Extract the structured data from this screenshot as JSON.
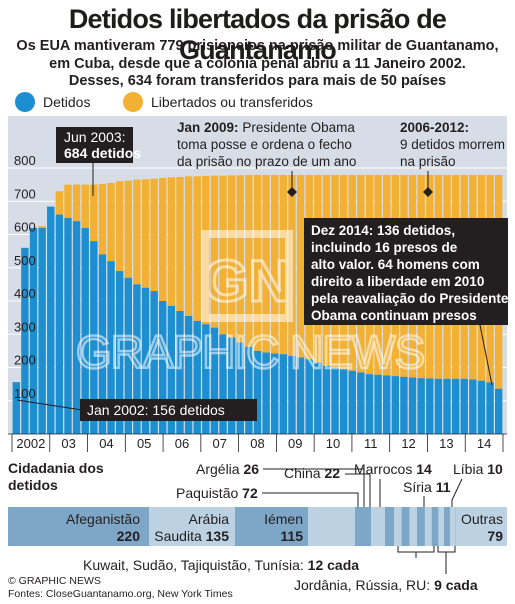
{
  "title": "Detidos libertados da prisão de Guantanamo",
  "subtitle": [
    "Os EUA mantiveram 779 prisioneios na prisão militar de Guantanamo,",
    "em Cuba, desde que a colónia penal abriu a 11 Janeiro 2002.",
    "Desses, 634 foram transferidos para mais de 50 países"
  ],
  "colors": {
    "detained": "#1d8fd1",
    "released": "#f2b134",
    "plot_bg": "#d6dde6",
    "dark": "#231f20",
    "strip_dark": "#7ea7c7",
    "strip_light": "#bcd2e3"
  },
  "chart_data": {
    "type": "bar",
    "stacked": true,
    "series": [
      {
        "name": "Detidos",
        "color": "#1d8fd1"
      },
      {
        "name": "Libertados ou transferidos",
        "color": "#f2b134"
      }
    ],
    "total_held": [
      156,
      560,
      620,
      625,
      684,
      730,
      750,
      750,
      750,
      750,
      752,
      755,
      760,
      762,
      765,
      766,
      768,
      770,
      772,
      773,
      775,
      775,
      776,
      777,
      777,
      778,
      778,
      779,
      779,
      779,
      779,
      779,
      779,
      779,
      779,
      779,
      779,
      779,
      779,
      779,
      779,
      779,
      779,
      779,
      779,
      779,
      779,
      779,
      779,
      779,
      779,
      779,
      779,
      779,
      779,
      779,
      779
    ],
    "detained": [
      156,
      560,
      620,
      620,
      684,
      660,
      650,
      640,
      620,
      580,
      540,
      520,
      490,
      470,
      450,
      440,
      430,
      400,
      385,
      370,
      355,
      340,
      330,
      320,
      300,
      290,
      275,
      262,
      250,
      245,
      242,
      240,
      235,
      230,
      225,
      215,
      205,
      200,
      195,
      190,
      185,
      180,
      178,
      176,
      174,
      172,
      170,
      168,
      167,
      166,
      166,
      166,
      166,
      164,
      160,
      155,
      136
    ],
    "ylim": [
      0,
      800
    ],
    "y_ticks": [
      100,
      200,
      300,
      400,
      500,
      600,
      700,
      800
    ],
    "x_tick_labels": [
      "2002",
      "03",
      "04",
      "05",
      "06",
      "07",
      "08",
      "09",
      "10",
      "11",
      "12",
      "13",
      "14"
    ],
    "annotations": [
      {
        "date": "Jun 2003",
        "text": "684 detidos"
      },
      {
        "date": "Jan 2009",
        "text": "Presidente Obama toma posse e ordena o fecho da prisão no prazo de um ano"
      },
      {
        "date": "2006-2012",
        "text": "9 detidos morrem na prisão"
      },
      {
        "date": "Dez 2014",
        "text": "136 detidos, incluindo 16 presos de alto valor. 64 homens com direito a liberdade em 2010 pela reavaliação do Presidente Obama continuam presos"
      },
      {
        "date": "Jan 2002",
        "text": "156 detidos"
      }
    ]
  },
  "labels": {
    "legend_detained": "Detidos",
    "legend_released": "Libertados ou transferidos",
    "jun2003_line1": "Jun 2003:",
    "jun2003_line2": "684 detidos",
    "jan2009_bold": "Jan 2009:",
    "jan2009_line1": "Presidente Obama",
    "jan2009_line2": "toma posse e ordena o fecho",
    "jan2009_line3": "da prisão no prazo de um ano",
    "y2006_bold": "2006-2012:",
    "y2006_line1": "9 detidos morrem",
    "y2006_line2": "na prisão",
    "dez2014_line1": "Dez 2014: 136 detidos,",
    "dez2014_line2": "incluindo 16 presos de",
    "dez2014_line3": "alto valor. 64 homens com",
    "dez2014_line4": "direito a liberdade em 2010",
    "dez2014_line5": "pela reavaliação do Presidente",
    "dez2014_line6": "Obama continuam presos",
    "jan2002": "Jan 2002: 156 detidos"
  },
  "watermark": "GRAPHIC NEWS",
  "citizenship": {
    "title_line1": "Cidadania dos",
    "title_line2": "detidos",
    "segments": [
      {
        "name": "Afeganistão",
        "value": "220"
      },
      {
        "name_line1": "Arábia",
        "name_line2": "Saudita",
        "value": "135"
      },
      {
        "name": "Iémen",
        "value": "115"
      },
      {
        "name": "Outras",
        "value": "79"
      }
    ],
    "callouts": [
      {
        "name": "Argélia",
        "value": "26"
      },
      {
        "name": "Paquistão",
        "value": "72"
      },
      {
        "name": "China",
        "value": "22"
      },
      {
        "name": "Marrocos",
        "value": "14"
      },
      {
        "name": "Síria",
        "value": "11"
      },
      {
        "name": "Líbia",
        "value": "10"
      }
    ],
    "kuwait_note_text": "Kuwait, Sudão, Tajiquistão, Tunísia: ",
    "kuwait_note_value": "12 cada",
    "jordan_note_text": "Jordânia, Rússia, RU: ",
    "jordan_note_value": "9 cada"
  },
  "footer": {
    "copyright": "© GRAPHIC NEWS",
    "sources": "Fontes: CloseGuantanamo.org, New York Times"
  }
}
